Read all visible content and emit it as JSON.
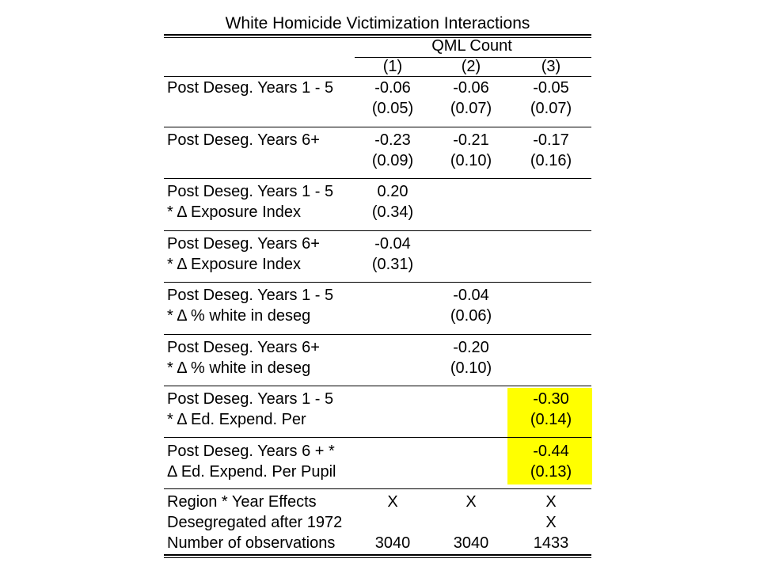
{
  "title": "White Homicide Victimization Interactions",
  "model_header": "QML Count",
  "columns": [
    "(1)",
    "(2)",
    "(3)"
  ],
  "rows": [
    {
      "label1": "Post Deseg. Years 1 - 5",
      "label2": "",
      "coef": [
        "-0.06",
        "-0.06",
        "-0.05"
      ],
      "se": [
        "(0.05)",
        "(0.07)",
        "(0.07)"
      ]
    },
    {
      "label1": "Post Deseg. Years 6+",
      "label2": "",
      "coef": [
        "-0.23",
        "-0.21",
        "-0.17"
      ],
      "se": [
        "(0.09)",
        "(0.10)",
        "(0.16)"
      ]
    },
    {
      "label1": "Post Deseg. Years 1 - 5",
      "label2": "* Δ Exposure Index",
      "coef": [
        "0.20",
        "",
        ""
      ],
      "se": [
        "(0.34)",
        "",
        ""
      ]
    },
    {
      "label1": "Post Deseg. Years 6+",
      "label2": "* Δ Exposure Index",
      "coef": [
        "-0.04",
        "",
        ""
      ],
      "se": [
        "(0.31)",
        "",
        ""
      ]
    },
    {
      "label1": "Post Deseg. Years 1 - 5",
      "label2": "* Δ % white in deseg",
      "coef": [
        "",
        "-0.04",
        ""
      ],
      "se": [
        "",
        "(0.06)",
        ""
      ]
    },
    {
      "label1": "Post Deseg. Years 6+",
      "label2": "* Δ % white in deseg",
      "coef": [
        "",
        "-0.20",
        ""
      ],
      "se": [
        "",
        "(0.10)",
        ""
      ]
    },
    {
      "label1": "Post Deseg. Years 1 - 5",
      "label2": "* Δ Ed. Expend. Per",
      "coef": [
        "",
        "",
        "-0.30"
      ],
      "se": [
        "",
        "",
        "(0.14)"
      ]
    },
    {
      "label1": "Post Deseg. Years 6 +  *",
      "label2": "Δ Ed. Expend. Per Pupil",
      "coef": [
        "",
        "",
        "-0.44"
      ],
      "se": [
        "",
        "",
        "(0.13)"
      ]
    }
  ],
  "footer": [
    {
      "label": "Region * Year Effects",
      "vals": [
        "X",
        "X",
        "X"
      ]
    },
    {
      "label": "Desegregated after 1972",
      "vals": [
        "",
        "",
        "X"
      ]
    },
    {
      "label": "Number of observations",
      "vals": [
        "3040",
        "3040",
        "1433"
      ]
    }
  ],
  "highlight_color": "#ffff00"
}
